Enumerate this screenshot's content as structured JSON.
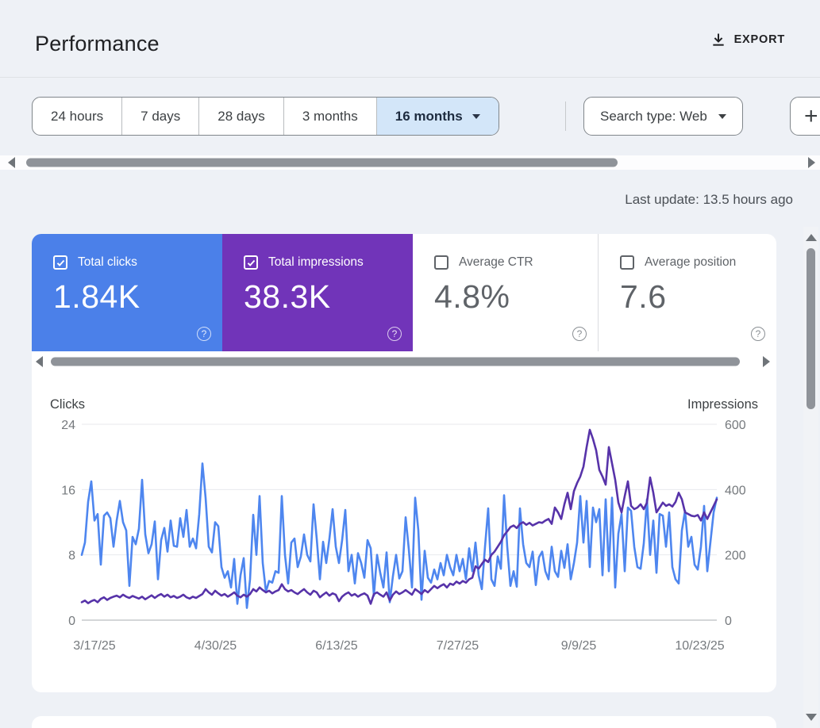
{
  "header": {
    "title": "Performance",
    "export_label": "EXPORT"
  },
  "filters": {
    "date_ranges": [
      {
        "label": "24 hours",
        "selected": false
      },
      {
        "label": "7 days",
        "selected": false
      },
      {
        "label": "28 days",
        "selected": false
      },
      {
        "label": "3 months",
        "selected": false
      },
      {
        "label": "16 months",
        "selected": true
      }
    ],
    "search_type_label": "Search type: Web",
    "add_filter_label": "+"
  },
  "status": {
    "last_update": "Last update: 13.5 hours ago"
  },
  "metrics": {
    "cards": [
      {
        "label": "Total clicks",
        "value": "1.84K",
        "checked": true,
        "color": "#4b80e9",
        "help_icon": "?"
      },
      {
        "label": "Total impressions",
        "value": "38.3K",
        "checked": true,
        "color": "#7134b9",
        "help_icon": "?"
      },
      {
        "label": "Average CTR",
        "value": "4.8%",
        "checked": false,
        "color": "#ffffff",
        "help_icon": "?"
      },
      {
        "label": "Average position",
        "value": "7.6",
        "checked": false,
        "color": "#ffffff",
        "help_icon": "?"
      }
    ]
  },
  "colors": {
    "clicks_line": "#4e86ef",
    "impressions_line": "#5733a9",
    "selected_chip_bg": "#d3e6f9",
    "grid_line": "#e8eaed",
    "base_line": "#c6c9cc"
  },
  "chart_data": {
    "type": "line",
    "x_labels": [
      "3/17/25",
      "4/30/25",
      "6/13/25",
      "7/27/25",
      "9/9/25",
      "10/23/25"
    ],
    "left_axis": {
      "title": "Clicks",
      "ticks": [
        24,
        16,
        8,
        0
      ],
      "max": 24
    },
    "right_axis": {
      "title": "Impressions",
      "ticks": [
        600,
        400,
        200,
        0
      ],
      "max": 600
    },
    "grid": true,
    "legend_position": "none",
    "series": [
      {
        "name": "Clicks",
        "axis": "left",
        "color": "#4e86ef",
        "values": [
          8.0,
          9.5,
          14.5,
          17.0,
          12.2,
          13.0,
          6.8,
          12.8,
          13.2,
          12.5,
          9.0,
          12.2,
          14.6,
          12.0,
          11.0,
          4.2,
          10.2,
          9.3,
          11.2,
          17.2,
          10.5,
          8.2,
          9.3,
          12.1,
          5.0,
          9.8,
          11.3,
          8.4,
          12.2,
          9.1,
          9.0,
          12.5,
          10.2,
          13.5,
          9.0,
          10.0,
          8.8,
          13.0,
          19.2,
          15.0,
          9.0,
          8.3,
          12.0,
          11.5,
          6.5,
          5.2,
          6.0,
          4.0,
          7.5,
          2.0,
          5.5,
          7.6,
          1.5,
          5.0,
          12.9,
          8.0,
          15.2,
          7.0,
          3.5,
          4.8,
          4.6,
          6.0,
          5.8,
          15.2,
          8.0,
          4.5,
          9.5,
          10.0,
          6.5,
          7.8,
          10.5,
          8.0,
          7.2,
          14.2,
          10.0,
          5.0,
          9.6,
          7.0,
          10.0,
          13.6,
          9.0,
          7.0,
          9.8,
          13.5,
          6.0,
          8.0,
          4.5,
          8.2,
          7.0,
          5.2,
          9.8,
          8.8,
          3.0,
          8.0,
          5.8,
          4.0,
          8.3,
          2.2,
          5.4,
          8.0,
          5.1,
          6.0,
          12.6,
          8.7,
          4.0,
          15.0,
          11.0,
          2.5,
          8.5,
          5.2,
          4.6,
          6.2,
          5.0,
          7.0,
          5.5,
          8.0,
          6.5,
          5.5,
          8.0,
          6.0,
          7.5,
          5.0,
          8.8,
          6.0,
          9.5,
          5.5,
          3.8,
          9.0,
          13.7,
          5.0,
          4.2,
          7.8,
          6.3,
          15.3,
          9.0,
          4.2,
          6.0,
          4.1,
          13.7,
          9.3,
          7.0,
          6.5,
          8.4,
          4.3,
          7.7,
          8.4,
          6.0,
          5.0,
          9.0,
          6.0,
          5.3,
          8.5,
          6.4,
          9.3,
          5.0,
          7.0,
          9.5,
          15.2,
          9.5,
          14.6,
          6.5,
          13.8,
          12.0,
          13.6,
          5.5,
          14.8,
          6.0,
          15.0,
          4.0,
          10.6,
          13.0,
          6.0,
          13.8,
          13.4,
          9.0,
          6.5,
          6.3,
          9.4,
          14.8,
          8.0,
          12.2,
          5.8,
          13.0,
          12.8,
          9.0,
          13.2,
          6.5,
          5.0,
          4.5,
          11.0,
          13.4,
          9.0,
          10.2,
          6.8,
          6.2,
          9.0,
          14.0,
          6.0,
          9.6,
          13.2,
          15.0
        ]
      },
      {
        "name": "Impressions",
        "axis": "right",
        "color": "#5733a9",
        "values": [
          55,
          60,
          52,
          58,
          62,
          55,
          65,
          70,
          62,
          68,
          72,
          75,
          70,
          78,
          72,
          68,
          74,
          70,
          66,
          72,
          64,
          70,
          76,
          68,
          75,
          80,
          72,
          78,
          70,
          74,
          68,
          72,
          78,
          70,
          66,
          72,
          68,
          74,
          80,
          95,
          85,
          78,
          90,
          82,
          75,
          80,
          72,
          78,
          85,
          75,
          70,
          78,
          72,
          80,
          95,
          88,
          100,
          92,
          85,
          90,
          82,
          88,
          92,
          110,
          95,
          88,
          92,
          85,
          80,
          88,
          95,
          85,
          78,
          90,
          85,
          70,
          78,
          85,
          75,
          82,
          78,
          58,
          72,
          80,
          85,
          75,
          80,
          72,
          78,
          82,
          75,
          50,
          80,
          85,
          78,
          72,
          85,
          60,
          78,
          88,
          80,
          85,
          92,
          85,
          78,
          95,
          88,
          80,
          92,
          85,
          95,
          105,
          98,
          105,
          110,
          100,
          112,
          108,
          118,
          112,
          120,
          115,
          125,
          130,
          165,
          158,
          172,
          185,
          178,
          200,
          210,
          225,
          240,
          260,
          272,
          285,
          290,
          282,
          295,
          300,
          292,
          298,
          290,
          295,
          300,
          298,
          305,
          310,
          295,
          345,
          330,
          310,
          355,
          390,
          340,
          395,
          420,
          440,
          470,
          530,
          583,
          555,
          520,
          460,
          440,
          415,
          530,
          480,
          430,
          360,
          330,
          380,
          425,
          350,
          340,
          345,
          355,
          340,
          360,
          437,
          390,
          330,
          345,
          360,
          350,
          355,
          348,
          362,
          390,
          370,
          330,
          325,
          320,
          318,
          322,
          305,
          330,
          310,
          330,
          350,
          370
        ]
      }
    ]
  }
}
